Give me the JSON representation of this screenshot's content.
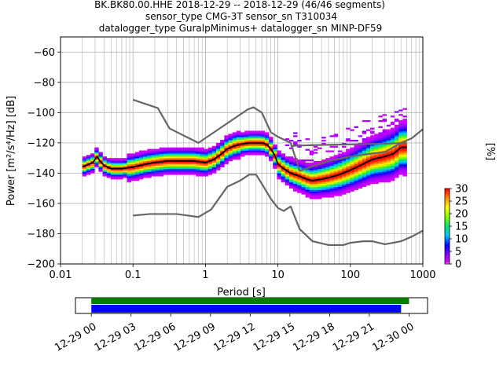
{
  "chart_data": [
    {
      "type": "heatmap",
      "title_lines": [
        "BK.BK80.00.HHE   2018-12-29 -- 2018-12-29  (46/46 segments)",
        "sensor_type CMG-3T sensor_sn T310034",
        "datalogger_type GuralpMinimus+ datalogger_sn MINP-DF59"
      ],
      "xlabel": "Period [s]",
      "ylabel": "Power [m²/s⁴/Hz] [dB]",
      "xscale": "log",
      "xlim": [
        0.01,
        1000
      ],
      "ylim": [
        -200,
        -50
      ],
      "x_ticks": [
        "0.01",
        "0.1",
        "1",
        "10",
        "100",
        "1000"
      ],
      "y_ticks": [
        "−200",
        "−180",
        "−160",
        "−140",
        "−120",
        "−100",
        "−80",
        "−60"
      ],
      "grid": true,
      "colorbar": {
        "label": "[%]",
        "range": [
          0,
          30
        ],
        "ticks": [
          "0",
          "5",
          "10",
          "15",
          "20",
          "25",
          "30"
        ]
      },
      "series": [
        {
          "style": "noise-model-low",
          "color": "#666666",
          "x": [
            0.1,
            0.17,
            0.4,
            0.8,
            1.2,
            2.0,
            3.0,
            4.0,
            5.0,
            6.0,
            8.0,
            10.0,
            12.0,
            15.0,
            20.0,
            30.0,
            50.0,
            80.0,
            100.0,
            150.0,
            200.0,
            300.0,
            500.0,
            700.0,
            1000.0
          ],
          "y": [
            -168,
            -167,
            -167,
            -169,
            -164,
            -149,
            -145,
            -141,
            -141,
            -147,
            -157,
            -163,
            -165,
            -162,
            -177,
            -185,
            -187.5,
            -187.5,
            -186,
            -185,
            -185,
            -187,
            -185,
            -182,
            -178
          ]
        },
        {
          "style": "noise-model-high",
          "color": "#666666",
          "x": [
            0.1,
            0.22,
            0.32,
            0.8,
            3.8,
            4.6,
            6.0,
            8.0,
            10.0,
            15.0,
            20.0,
            30.0,
            50.0,
            100.0,
            200.0,
            300.0,
            500.0,
            700.0,
            1000.0
          ],
          "y": [
            -91.5,
            -97,
            -110.5,
            -120,
            -98,
            -96.5,
            -100,
            -113,
            -116,
            -120,
            -138.5,
            -135.5,
            -132,
            -129,
            -127,
            -126,
            -120,
            -117,
            -111
          ]
        },
        {
          "style": "noise-model-high-lp",
          "color": "#666666",
          "x": [
            15.0,
            30.0,
            100.0,
            300.0,
            600.0
          ],
          "y": [
            -122,
            -121.5,
            -121,
            -120.5,
            -120
          ]
        },
        {
          "style": "mode",
          "color": "#000000",
          "x": [
            0.02,
            0.022,
            0.025,
            0.028,
            0.03,
            0.032,
            0.035,
            0.04,
            0.05,
            0.07,
            0.1,
            0.15,
            0.2,
            0.3,
            0.5,
            0.7,
            1.0,
            1.3,
            1.6,
            2.0,
            2.5,
            3.0,
            4.0,
            5.0,
            6.0,
            7.0,
            8.0,
            9.0,
            10.0,
            12.0,
            15.0,
            20.0,
            25.0,
            30.0,
            40.0,
            50.0,
            70.0,
            100.0,
            150.0,
            200.0,
            300.0,
            400.0,
            500.0,
            600.0
          ],
          "y": [
            -136,
            -135,
            -134,
            -133,
            -131,
            -129,
            -132,
            -135,
            -137,
            -137,
            -136,
            -134,
            -133,
            -132,
            -132,
            -132,
            -133,
            -131,
            -128,
            -124,
            -122,
            -121,
            -120,
            -120,
            -120,
            -121,
            -124,
            -128,
            -134,
            -137,
            -140,
            -142,
            -144,
            -145,
            -144,
            -143,
            -141,
            -138,
            -134,
            -131,
            -129,
            -127,
            -123,
            -123
          ]
        }
      ]
    },
    {
      "type": "timeline",
      "x_ticks": [
        "12-29 00",
        "12-29 03",
        "12-29 06",
        "12-29 09",
        "12-29 12",
        "12-29 15",
        "12-29 18",
        "12-29 21",
        "12-30 00"
      ],
      "xlim_hours": [
        -1.2,
        25.4
      ],
      "bars": [
        {
          "color": "#008000",
          "start_hour": 0.0,
          "end_hour": 24.0
        },
        {
          "color": "#0000ff",
          "start_hour": 0.0,
          "end_hour": 23.4
        }
      ]
    }
  ]
}
